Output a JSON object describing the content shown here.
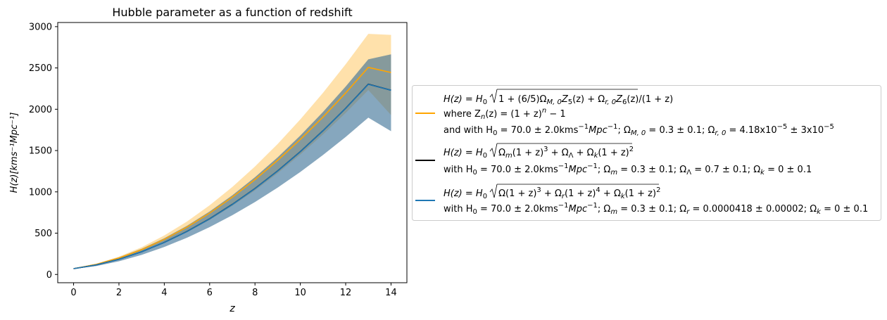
{
  "chart_data": {
    "type": "area",
    "title": "Hubble parameter as a function of redshift",
    "xlabel": "z",
    "ylabel": "H(z)[kms⁻¹Mpc⁻¹]",
    "xlim": [
      -0.7,
      14.7
    ],
    "ylim": [
      -100,
      3050
    ],
    "xticks": [
      0,
      2,
      4,
      6,
      8,
      10,
      12,
      14
    ],
    "yticks": [
      0,
      500,
      1000,
      1500,
      2000,
      2500,
      3000
    ],
    "grid": false,
    "legend_position": "outside-right",
    "x": [
      0,
      1,
      2,
      3,
      4,
      5,
      6,
      7,
      8,
      9,
      10,
      11,
      12,
      13,
      14
    ],
    "series": [
      {
        "color": "#ffa500",
        "values": [
          70,
          122,
          199,
          300,
          425,
          573,
          743,
          935,
          1148,
          1381,
          1634,
          1906,
          2197,
          2507,
          2445
        ],
        "band_upper": [
          72,
          130,
          216,
          330,
          472,
          641,
          837,
          1059,
          1307,
          1580,
          1877,
          2199,
          2544,
          2913,
          2900
        ],
        "band_lower": [
          68,
          115,
          183,
          271,
          381,
          510,
          660,
          830,
          1018,
          1225,
          1451,
          1694,
          1955,
          2233,
          1930
        ]
      },
      {
        "color": "#000000",
        "values": [
          70,
          115,
          184,
          275,
          388,
          521,
          674,
          848,
          1041,
          1254,
          1487,
          1740,
          2012,
          2303,
          2230
        ],
        "band_upper": [
          72,
          127,
          207,
          310,
          438,
          589,
          762,
          958,
          1177,
          1418,
          1681,
          1967,
          2274,
          2604,
          2665
        ],
        "band_lower": [
          68,
          103,
          160,
          237,
          333,
          445,
          573,
          717,
          877,
          1052,
          1241,
          1446,
          1665,
          1899,
          1735
        ]
      },
      {
        "color": "#1f77b4",
        "values": [
          70,
          115,
          184,
          275,
          387,
          520,
          673,
          847,
          1040,
          1253,
          1486,
          1739,
          2011,
          2302,
          2230
        ],
        "band_upper": [
          72,
          127,
          207,
          310,
          438,
          589,
          762,
          958,
          1177,
          1418,
          1681,
          1967,
          2274,
          2604,
          2665
        ],
        "band_lower": [
          68,
          103,
          160,
          237,
          333,
          445,
          573,
          717,
          877,
          1052,
          1241,
          1446,
          1665,
          1899,
          1735
        ]
      }
    ],
    "legend": [
      {
        "color": "#ffa500",
        "eq1_main": "H(z) = H",
        "eq1_sub": "0",
        "eq1_root": "1 + (6/5)Ω",
        "eq1_mid": "Z",
        "eq1_z5": "5",
        "eq1_z": "(z) + Ω",
        "eq1_rsub": "r, 0",
        "eq1_z6a": "Z",
        "eq1_z6": "6",
        "eq1_z6b": "(z)",
        "eq1_tail": "/(1 + z)",
        "eq1_msub": "M, 0",
        "line2": "where Z",
        "line2_sub": "n",
        "line2_rest": "(z) = (1 + z)",
        "line2_sup": "n",
        "line2_end": " − 1",
        "line3": "and with H",
        "line3_sub": "0",
        "line3_a": " = 70.0 ± 2.0kms",
        "line3_sup": "−1",
        "line3_b": "Mpc",
        "line3_sup2": "−1",
        "line3_c": "; Ω",
        "line3_msub": "M, 0",
        "line3_d": " = 0.3 ± 0.1; Ω",
        "line3_rsub": "r, 0",
        "line3_e": " = 4.18x10",
        "line3_sup3": "−5",
        "line3_f": " ± 3x10",
        "line3_sup4": "−5"
      },
      {
        "color": "#000000",
        "eq_main": "H(z) = H",
        "eq_sub": "0",
        "eq_root_a": "Ω",
        "eq_root_msub": "m",
        "eq_root_b": "(1 + z)",
        "eq_root_sup": "3",
        "eq_root_c": " + Ω",
        "eq_root_lsub": "Λ",
        "eq_root_d": " + Ω",
        "eq_root_ksub": "k",
        "eq_root_e": "(1 + z)",
        "eq_root_sup2": "2",
        "line2": "with H",
        "line2_sub": "0",
        "line2_a": " = 70.0 ± 2.0kms",
        "line2_sup": "−1",
        "line2_b": "Mpc",
        "line2_sup2": "−1",
        "line2_c": "; Ω",
        "line2_msub": "m",
        "line2_d": " = 0.3 ± 0.1; Ω",
        "line2_lsub": "Λ",
        "line2_e": " = 0.7 ± 0.1; Ω",
        "line2_ksub": "k",
        "line2_f": " = 0 ± 0.1"
      },
      {
        "color": "#1f77b4",
        "eq_main": "H(z) = H",
        "eq_sub": "0",
        "eq_root_a": "Ω(1 + z)",
        "eq_root_sup": "3",
        "eq_root_b": " + Ω",
        "eq_root_rsub": "r",
        "eq_root_c": "(1 + z)",
        "eq_root_sup2": "4",
        "eq_root_d": " + Ω",
        "eq_root_ksub": "k",
        "eq_root_e": "(1 + z)",
        "eq_root_sup3": "2",
        "line2": "with H",
        "line2_sub": "0",
        "line2_a": " = 70.0 ± 2.0kms",
        "line2_sup": "−1",
        "line2_b": "Mpc",
        "line2_sup2": "−1",
        "line2_c": "; Ω",
        "line2_msub": "m",
        "line2_d": " = 0.3 ± 0.1; Ω",
        "line2_rsub": "r",
        "line2_e": " = 0.0000418 ± 0.00002; Ω",
        "line2_ksub": "k",
        "line2_f": " = 0 ± 0.1"
      }
    ]
  }
}
